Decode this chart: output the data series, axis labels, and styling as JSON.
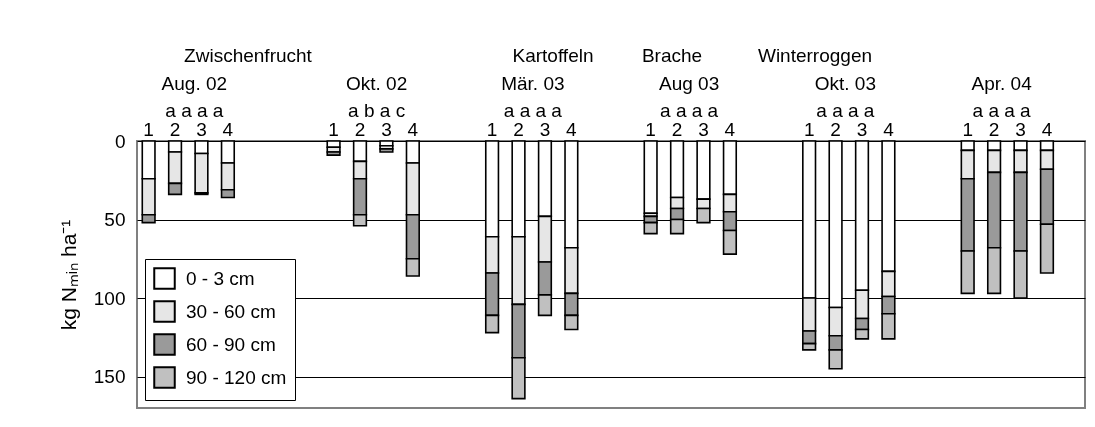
{
  "chart_data": {
    "type": "bar",
    "stacked": true,
    "ylabel": "kg Nₘᵢₙ ha⁻¹",
    "categories": [
      "1",
      "2",
      "3",
      "4",
      null,
      null,
      null,
      "1",
      "2",
      "3",
      "4",
      null,
      null,
      "1",
      "2",
      "3",
      "4",
      null,
      null,
      "1",
      "2",
      "3",
      "4",
      null,
      null,
      "1",
      "2",
      "3",
      "4",
      null,
      null,
      "1",
      "2",
      "3",
      "4",
      null
    ],
    "series": [
      {
        "name": "0 - 3 cm",
        "color": "#ffffff",
        "values": [
          24,
          7,
          8,
          14,
          null,
          null,
          null,
          4,
          13,
          3,
          14,
          null,
          null,
          61,
          61,
          48,
          68,
          null,
          null,
          46,
          36,
          37,
          34,
          null,
          null,
          100,
          106,
          95,
          83,
          null,
          null,
          6,
          6,
          6,
          6,
          null
        ]
      },
      {
        "name": "30 - 60 cm",
        "color": "#e6e6e6",
        "values": [
          23,
          20,
          25,
          17,
          null,
          null,
          null,
          3,
          11,
          2,
          33,
          null,
          null,
          23,
          43,
          29,
          29,
          null,
          null,
          2,
          7,
          6,
          11,
          null,
          null,
          21,
          18,
          18,
          16,
          null,
          null,
          18,
          14,
          14,
          12,
          null
        ]
      },
      {
        "name": "60 - 90 cm",
        "color": "#9a9a9a",
        "values": [
          5,
          7,
          1,
          5,
          null,
          null,
          null,
          2,
          23,
          2,
          28,
          null,
          null,
          27,
          34,
          21,
          14,
          null,
          null,
          4,
          7,
          0,
          12,
          null,
          null,
          8,
          9,
          7,
          11,
          null,
          null,
          46,
          48,
          50,
          35,
          null
        ]
      },
      {
        "name": "90 - 120 cm",
        "color": "#c0c0c0",
        "values": [
          0,
          0,
          0,
          0,
          null,
          null,
          null,
          0,
          7,
          0,
          11,
          null,
          null,
          11,
          26,
          13,
          9,
          null,
          null,
          7,
          9,
          9,
          15,
          null,
          null,
          4,
          12,
          6,
          16,
          null,
          null,
          27,
          29,
          30,
          31,
          null
        ]
      }
    ],
    "ylim": [
      170,
      0
    ],
    "yticks": [
      0,
      50,
      100,
      150
    ],
    "grid": "y",
    "legend": "bottom left",
    "annotations": [
      "Zwischenfrucht",
      "Kartoffeln",
      "Brache",
      "Winterroggen",
      "Aug. 02",
      "Okt. 02",
      "Mär. 03",
      "Aug 03",
      "Okt. 03",
      "Apr. 04",
      "a a a a",
      "a b a c",
      "a a a a",
      "a a a a",
      "a a a a",
      "a a a a"
    ]
  }
}
